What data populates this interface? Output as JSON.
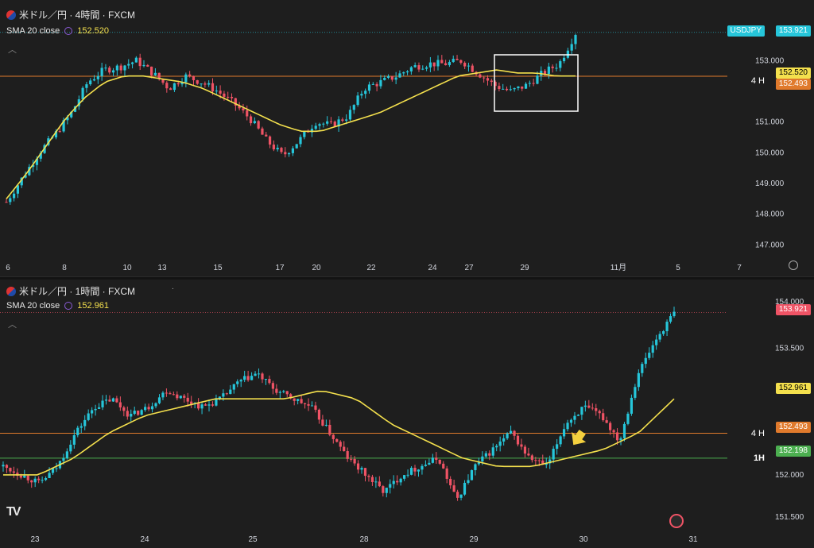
{
  "pane1": {
    "title": "米ドル／円 · 4時間 · FXCM",
    "sma_label": "SMA 20 close",
    "sma_value": "152.520",
    "y_ticks": [
      "153.000",
      "151.000",
      "150.000",
      "149.000",
      "148.000",
      "147.000"
    ],
    "y_tick_values": [
      153,
      151,
      150,
      149,
      148,
      147
    ],
    "x_ticks": [
      "6",
      "8",
      "10",
      "13",
      "15",
      "17",
      "20",
      "22",
      "24",
      "27",
      "29",
      "11月",
      "5",
      "7"
    ],
    "tags": {
      "symbol": "USDJPY",
      "price": "153.921",
      "sma": "152.520",
      "level": "152.493",
      "level_label": "4 H"
    }
  },
  "pane2": {
    "title": "米ドル／円 · 1時間 · FXCM",
    "sma_label": "SMA 20 close",
    "sma_value": "152.961",
    "y_ticks": [
      "153.500",
      "152.000",
      "151.500"
    ],
    "y_tick_values": [
      153.5,
      152.0,
      151.5
    ],
    "y_top_partial": "154.000",
    "x_ticks": [
      "23",
      "24",
      "25",
      "28",
      "29",
      "30",
      "31"
    ],
    "tags": {
      "price": "153.921",
      "sma": "152.961",
      "level4h": "152.493",
      "level4h_label": "4 H",
      "level1h": "152.198",
      "level1h_label": "1H"
    }
  },
  "colors": {
    "up": "#26c6da",
    "down": "#ef5365",
    "sma": "#f4e04d",
    "level4h": "#e07a2c",
    "level1h": "#4caf50",
    "box": "#ffffff",
    "arrow": "#f4d03f"
  },
  "chart_data": [
    {
      "type": "candlestick",
      "title": "米ドル／円 · 4時間 · FXCM",
      "indicator": "SMA 20 close",
      "ylim": [
        146.7,
        154.2
      ],
      "grid": false,
      "x_labels": [
        "6",
        "8",
        "10",
        "13",
        "15",
        "17",
        "20",
        "22",
        "24",
        "27",
        "29",
        "11月",
        "5",
        "7"
      ],
      "close_path": [
        148.4,
        149.2,
        150.0,
        150.6,
        151.3,
        152.3,
        152.7,
        152.8,
        153.0,
        152.6,
        152.1,
        152.5,
        152.3,
        152.0,
        151.6,
        151.1,
        150.4,
        149.9,
        150.4,
        151.0,
        150.9,
        151.2,
        152.1,
        152.3,
        152.5,
        152.8,
        152.9,
        152.9,
        153.0,
        152.6,
        152.2,
        152.0,
        152.2,
        152.6,
        152.9,
        153.9
      ],
      "sma_path": [
        148.5,
        149.3,
        150.2,
        151.1,
        151.8,
        152.3,
        152.5,
        152.5,
        152.4,
        152.3,
        152.1,
        151.8,
        151.5,
        151.2,
        150.9,
        150.7,
        150.7,
        150.9,
        151.1,
        151.3,
        151.6,
        151.9,
        152.2,
        152.5,
        152.6,
        152.7,
        152.6,
        152.6,
        152.5,
        152.5
      ],
      "last_price": 153.921,
      "sma_last": 152.52,
      "level_4h": 152.493
    },
    {
      "type": "candlestick",
      "title": "米ドル／円 · 1時間 · FXCM",
      "indicator": "SMA 20 close",
      "ylim": [
        151.35,
        154.05
      ],
      "grid": false,
      "x_labels": [
        "23",
        "24",
        "25",
        "28",
        "29",
        "30",
        "31"
      ],
      "close_path": [
        152.1,
        152.0,
        151.9,
        152.1,
        152.5,
        152.8,
        152.9,
        152.7,
        152.8,
        153.0,
        152.9,
        152.8,
        152.9,
        153.1,
        153.2,
        153.0,
        152.9,
        152.8,
        152.5,
        152.2,
        152.0,
        151.8,
        152.0,
        152.1,
        152.2,
        151.7,
        152.1,
        152.3,
        152.5,
        152.2,
        152.1,
        152.6,
        152.8,
        152.7,
        152.4,
        153.2,
        153.6,
        153.92
      ],
      "sma_path": [
        152.0,
        152.0,
        152.2,
        152.5,
        152.7,
        152.8,
        152.9,
        152.9,
        152.9,
        153.0,
        152.9,
        152.6,
        152.4,
        152.2,
        152.1,
        152.1,
        152.2,
        152.3,
        152.5,
        152.9
      ],
      "last_price": 153.921,
      "sma_last": 152.961,
      "level_4h": 152.493,
      "level_1h": 152.198
    }
  ]
}
